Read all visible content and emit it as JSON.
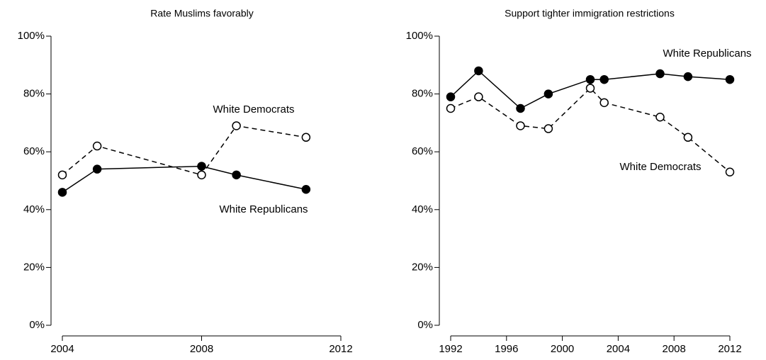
{
  "chart_data": [
    {
      "type": "line",
      "title": "Rate Muslims favorably",
      "x": [
        2004,
        2005,
        2008,
        2009,
        2011
      ],
      "xlim": [
        2004,
        2012
      ],
      "xticks": [
        2004,
        2008,
        2012
      ],
      "ylim": [
        0,
        100
      ],
      "yticks": [
        {
          "value": 0,
          "label": "0%"
        },
        {
          "value": 20,
          "label": "20%"
        },
        {
          "value": 40,
          "label": "40%"
        },
        {
          "value": 60,
          "label": "60%"
        },
        {
          "value": 80,
          "label": "80%"
        },
        {
          "value": 100,
          "label": "100%"
        }
      ],
      "series": [
        {
          "name": "White Democrats",
          "color": "#000000",
          "marker": "open",
          "linestyle": "dashed",
          "values": [
            52,
            62,
            52,
            69,
            65
          ]
        },
        {
          "name": "White Republicans",
          "color": "#000000",
          "marker": "filled",
          "linestyle": "solid",
          "values": [
            46,
            54,
            55,
            52,
            47
          ]
        }
      ]
    },
    {
      "type": "line",
      "title": "Support tighter immigration restrictions",
      "x": [
        1992,
        1994,
        1997,
        1999,
        2002,
        2003,
        2007,
        2009,
        2012
      ],
      "xlim": [
        1992,
        2012
      ],
      "xticks": [
        1992,
        1996,
        2000,
        2004,
        2008,
        2012
      ],
      "ylim": [
        0,
        100
      ],
      "yticks": [
        {
          "value": 0,
          "label": "0%"
        },
        {
          "value": 20,
          "label": "20%"
        },
        {
          "value": 40,
          "label": "40%"
        },
        {
          "value": 60,
          "label": "60%"
        },
        {
          "value": 80,
          "label": "80%"
        },
        {
          "value": 100,
          "label": "100%"
        }
      ],
      "series": [
        {
          "name": "White Democrats",
          "color": "#000000",
          "marker": "open",
          "linestyle": "dashed",
          "values": [
            75,
            79,
            69,
            68,
            82,
            77,
            72,
            65,
            53
          ]
        },
        {
          "name": "White Republicans",
          "color": "#000000",
          "marker": "filled",
          "linestyle": "solid",
          "values": [
            79,
            88,
            75,
            80,
            85,
            85,
            87,
            86,
            85
          ]
        }
      ]
    }
  ]
}
